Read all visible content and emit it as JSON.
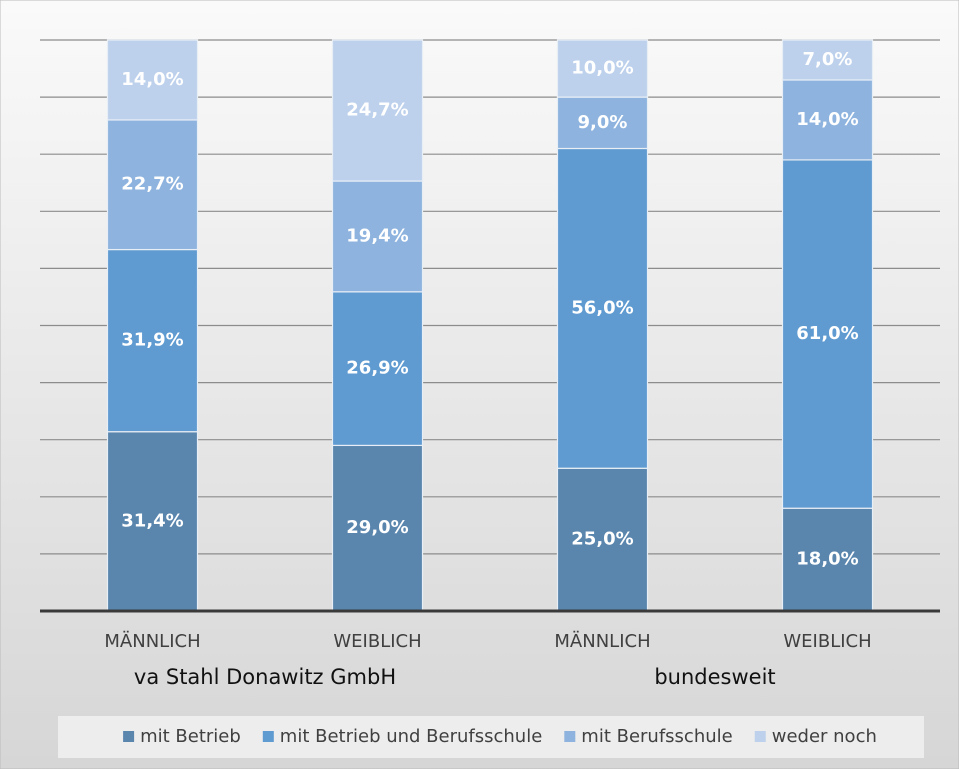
{
  "chart_data": {
    "type": "stacked_bar",
    "categories": [
      "MÄNNLICH",
      "WEIBLICH",
      "MÄNNLICH",
      "WEIBLICH"
    ],
    "group_labels": [
      "va Stahl Donawitz GmbH",
      "bundesweit"
    ],
    "series": [
      {
        "name": "mit Betrieb",
        "color": "#5a86ae",
        "values": [
          31.4,
          29.0,
          25.0,
          18.0
        ],
        "value_labels": [
          "31,4%",
          "29,0%",
          "25,0%",
          "18,0%"
        ]
      },
      {
        "name": "mit Betrieb und Berufsschule",
        "color": "#5f9ad0",
        "values": [
          31.9,
          26.9,
          56.0,
          61.0
        ],
        "value_labels": [
          "31,9%",
          "26,9%",
          "56,0%",
          "61,0%"
        ]
      },
      {
        "name": "mit Berufsschule",
        "color": "#8db3de",
        "values": [
          22.7,
          19.4,
          9.0,
          14.0
        ],
        "value_labels": [
          "22,7%",
          "19,4%",
          "9,0%",
          "14,0%"
        ]
      },
      {
        "name": "weder noch",
        "color": "#bdd1ec",
        "values": [
          14.0,
          24.7,
          10.0,
          7.0
        ],
        "value_labels": [
          "14,0%",
          "24,7%",
          "10,0%",
          "7,0%"
        ]
      }
    ],
    "ylim": [
      0,
      100
    ],
    "yticks": [
      10,
      20,
      30,
      40,
      50,
      60,
      70,
      80,
      90,
      100
    ],
    "grid": true,
    "legend": "bottom"
  }
}
